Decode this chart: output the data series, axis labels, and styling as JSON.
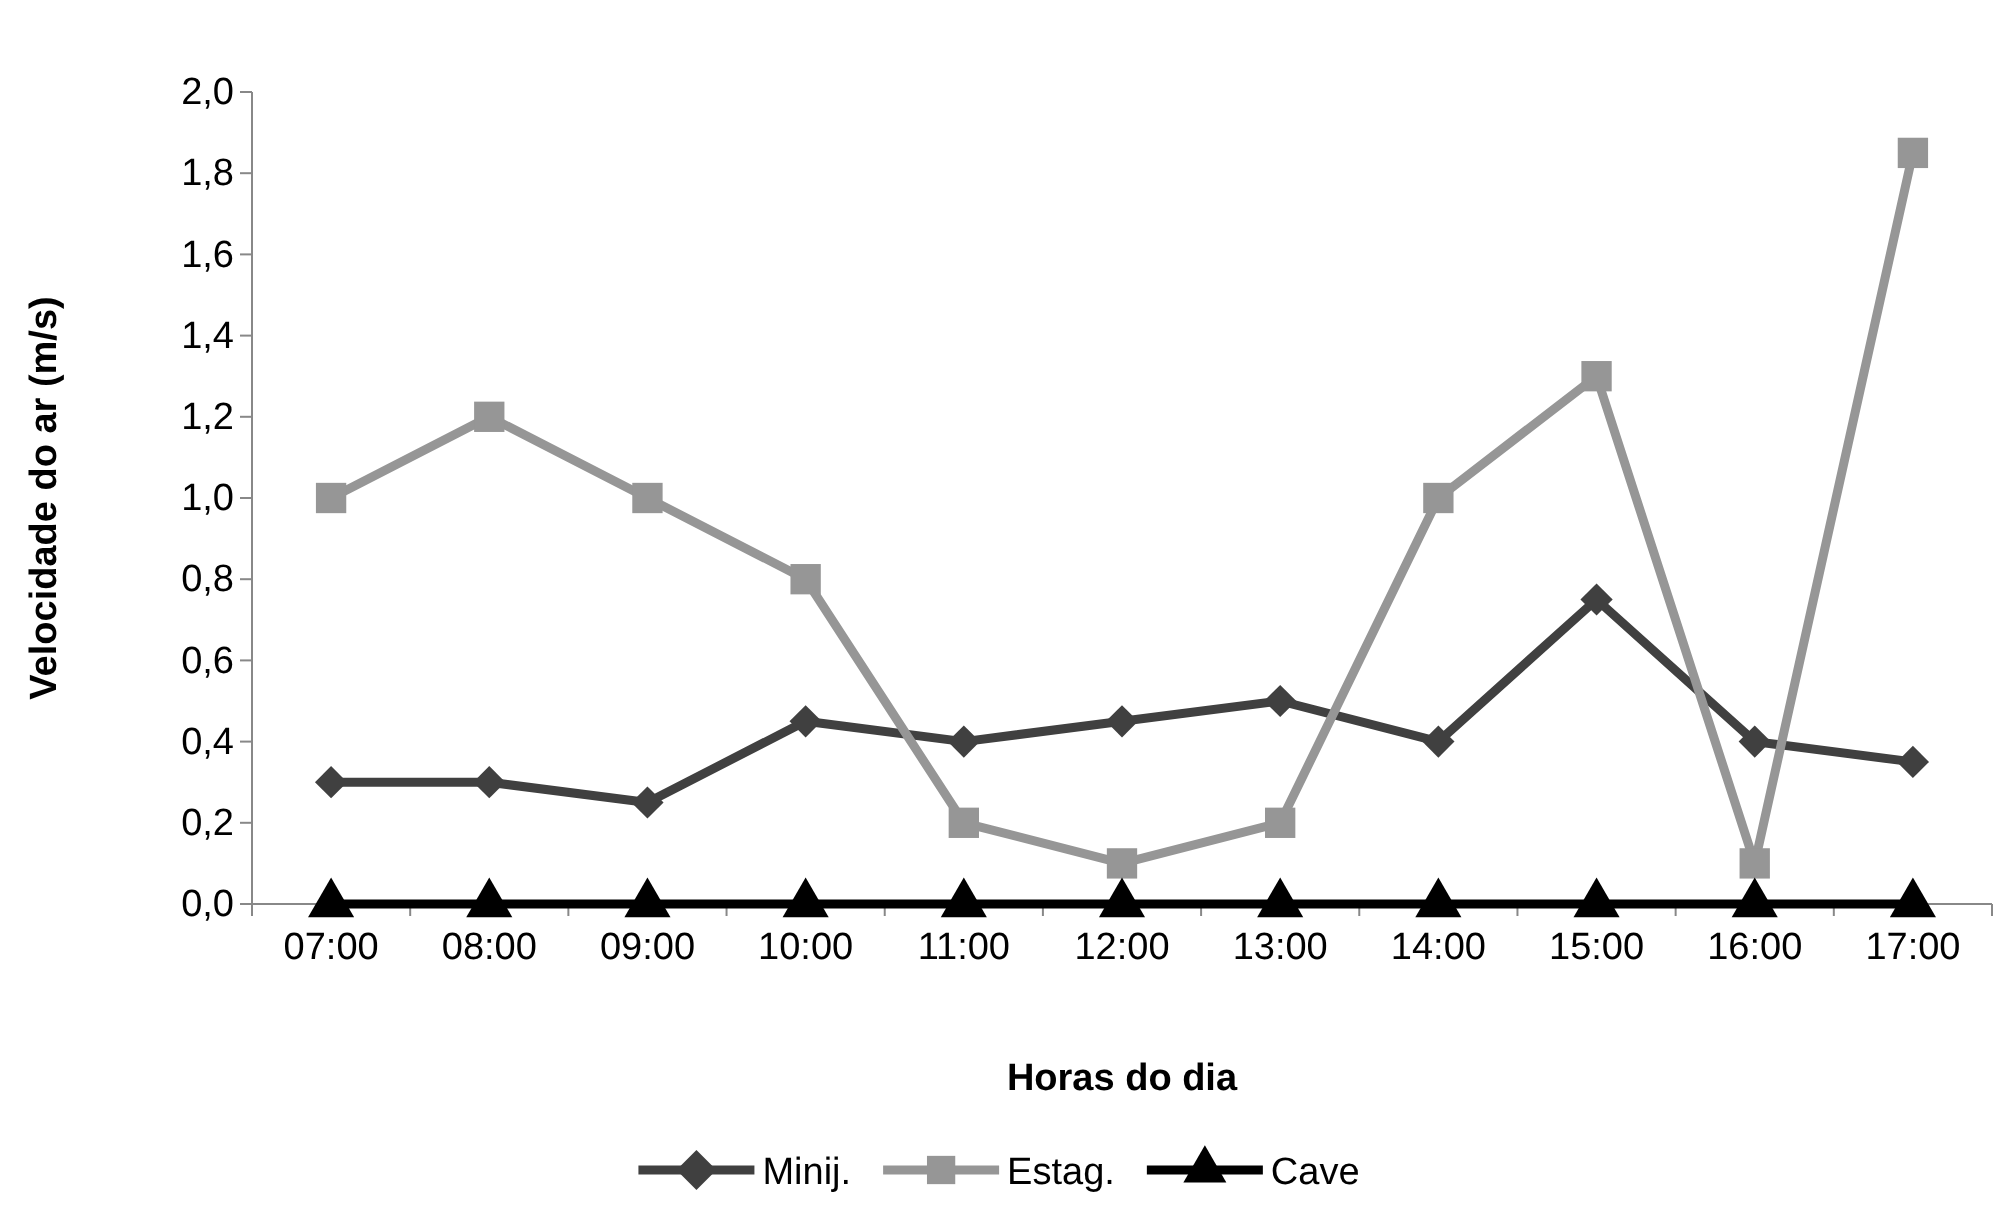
{
  "chart_data": {
    "type": "line",
    "xlabel": "Horas do dia",
    "ylabel": "Velocidade do ar (m/s)",
    "categories": [
      "07:00",
      "08:00",
      "09:00",
      "10:00",
      "11:00",
      "12:00",
      "13:00",
      "14:00",
      "15:00",
      "16:00",
      "17:00"
    ],
    "series": [
      {
        "name": "Minij.",
        "color": "#404040",
        "marker": "diamond",
        "values": [
          0.3,
          0.3,
          0.25,
          0.45,
          0.4,
          0.45,
          0.5,
          0.4,
          0.75,
          0.4,
          0.35
        ]
      },
      {
        "name": "Estag.",
        "color": "#969696",
        "marker": "square",
        "values": [
          1.0,
          1.2,
          1.0,
          0.8,
          0.2,
          0.1,
          0.2,
          1.0,
          1.3,
          0.1,
          1.85
        ]
      },
      {
        "name": "Cave",
        "color": "#000000",
        "marker": "triangle",
        "values": [
          0,
          0,
          0,
          0,
          0,
          0,
          0,
          0,
          0,
          0,
          0
        ]
      }
    ],
    "ylim": [
      0,
      2
    ],
    "yticks": [
      {
        "value": 0,
        "label": "0,0"
      },
      {
        "value": 0.2,
        "label": "0,2"
      },
      {
        "value": 0.4,
        "label": "0,4"
      },
      {
        "value": 0.6,
        "label": "0,6"
      },
      {
        "value": 0.8,
        "label": "0,8"
      },
      {
        "value": 1.0,
        "label": "1,0"
      },
      {
        "value": 1.2,
        "label": "1,2"
      },
      {
        "value": 1.4,
        "label": "1,4"
      },
      {
        "value": 1.6,
        "label": "1,6"
      },
      {
        "value": 1.8,
        "label": "1,8"
      },
      {
        "value": 2.0,
        "label": "2,0"
      }
    ],
    "grid": false,
    "legend": "bottom",
    "line_style": "solid"
  }
}
